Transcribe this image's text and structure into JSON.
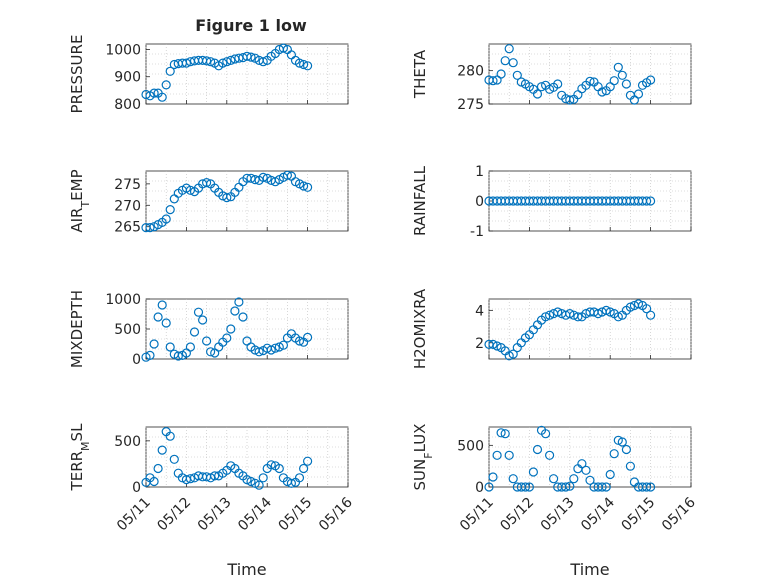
{
  "figure": {
    "title": "Figure 1 low",
    "marker_color": "#0072bd"
  },
  "chart_data": [
    {
      "type": "scatter",
      "ylabel": "PRESSURE",
      "xlim": [
        "05/11",
        "05/16"
      ],
      "ylim": [
        800,
        1020
      ],
      "yticks": [
        "800",
        "900",
        "1000"
      ],
      "xtick_labels": [],
      "grid": true,
      "x_days": [
        0.0,
        0.1,
        0.2,
        0.3,
        0.4,
        0.5,
        0.6,
        0.7,
        0.8,
        0.9,
        1.0,
        1.1,
        1.2,
        1.3,
        1.4,
        1.5,
        1.6,
        1.7,
        1.8,
        1.9,
        2.0,
        2.1,
        2.2,
        2.3,
        2.4,
        2.5,
        2.6,
        2.7,
        2.8,
        2.9,
        3.0,
        3.1,
        3.2,
        3.3,
        3.4,
        3.5,
        3.6,
        3.7,
        3.8,
        3.9,
        4.0
      ],
      "y": [
        835,
        830,
        840,
        840,
        825,
        870,
        920,
        945,
        948,
        950,
        950,
        955,
        958,
        960,
        960,
        958,
        955,
        950,
        940,
        950,
        955,
        960,
        965,
        968,
        970,
        975,
        972,
        968,
        960,
        955,
        960,
        975,
        985,
        1000,
        1005,
        1000,
        980,
        960,
        950,
        945,
        940
      ]
    },
    {
      "type": "scatter",
      "ylabel": "THETA",
      "xlim": [
        "05/11",
        "05/16"
      ],
      "ylim": [
        275,
        284
      ],
      "yticks": [
        "275",
        "280"
      ],
      "xtick_labels": [],
      "grid": true,
      "x_days": [
        0.0,
        0.1,
        0.2,
        0.3,
        0.4,
        0.5,
        0.6,
        0.7,
        0.8,
        0.9,
        1.0,
        1.1,
        1.2,
        1.3,
        1.4,
        1.5,
        1.6,
        1.7,
        1.8,
        1.9,
        2.0,
        2.1,
        2.2,
        2.3,
        2.4,
        2.5,
        2.6,
        2.7,
        2.8,
        2.9,
        3.0,
        3.1,
        3.2,
        3.3,
        3.4,
        3.5,
        3.6,
        3.7,
        3.8,
        3.9,
        4.0
      ],
      "y": [
        278.6,
        278.5,
        278.6,
        279.5,
        281.5,
        283.3,
        281.2,
        279.3,
        278.3,
        278.0,
        277.6,
        277.2,
        276.5,
        277.6,
        277.8,
        277.2,
        277.5,
        278.0,
        276.3,
        275.8,
        275.6,
        275.7,
        276.4,
        277.3,
        277.8,
        278.4,
        278.3,
        277.6,
        276.8,
        277.0,
        277.6,
        278.5,
        280.5,
        279.3,
        278.0,
        276.3,
        275.6,
        276.5,
        277.8,
        278.2,
        278.6
      ]
    },
    {
      "type": "scatter",
      "ylabel": "AIR_TEMP",
      "xlim": [
        "05/11",
        "05/16"
      ],
      "ylim": [
        264,
        278
      ],
      "yticks": [
        "265",
        "270",
        "275"
      ],
      "xtick_labels": [],
      "grid": true,
      "x_days": [
        0.0,
        0.1,
        0.2,
        0.3,
        0.4,
        0.5,
        0.6,
        0.7,
        0.8,
        0.9,
        1.0,
        1.1,
        1.2,
        1.3,
        1.4,
        1.5,
        1.6,
        1.7,
        1.8,
        1.9,
        2.0,
        2.1,
        2.2,
        2.3,
        2.4,
        2.5,
        2.6,
        2.7,
        2.8,
        2.9,
        3.0,
        3.1,
        3.2,
        3.3,
        3.4,
        3.5,
        3.6,
        3.7,
        3.8,
        3.9,
        4.0
      ],
      "y": [
        264.8,
        264.8,
        265.0,
        265.5,
        266.0,
        266.8,
        269.0,
        271.5,
        272.8,
        273.5,
        274.0,
        273.5,
        273.2,
        274.0,
        275.0,
        275.3,
        275.0,
        274.0,
        273.0,
        272.2,
        271.8,
        272.0,
        273.0,
        274.2,
        275.5,
        276.3,
        276.3,
        276.0,
        275.8,
        276.5,
        276.3,
        275.8,
        275.5,
        276.0,
        276.5,
        277.0,
        276.8,
        275.5,
        275.0,
        274.5,
        274.2
      ]
    },
    {
      "type": "scatter",
      "ylabel": "RAINFALL",
      "xlim": [
        "05/11",
        "05/16"
      ],
      "ylim": [
        -1,
        1
      ],
      "yticks": [
        "-1",
        "0",
        "1"
      ],
      "xtick_labels": [],
      "grid": true,
      "x_days": [
        0.0,
        0.1,
        0.2,
        0.3,
        0.4,
        0.5,
        0.6,
        0.7,
        0.8,
        0.9,
        1.0,
        1.1,
        1.2,
        1.3,
        1.4,
        1.5,
        1.6,
        1.7,
        1.8,
        1.9,
        2.0,
        2.1,
        2.2,
        2.3,
        2.4,
        2.5,
        2.6,
        2.7,
        2.8,
        2.9,
        3.0,
        3.1,
        3.2,
        3.3,
        3.4,
        3.5,
        3.6,
        3.7,
        3.8,
        3.9,
        4.0
      ],
      "y": [
        0,
        0,
        0,
        0,
        0,
        0,
        0,
        0,
        0,
        0,
        0,
        0,
        0,
        0,
        0,
        0,
        0,
        0,
        0,
        0,
        0,
        0,
        0,
        0,
        0,
        0,
        0,
        0,
        0,
        0,
        0,
        0,
        0,
        0,
        0,
        0,
        0,
        0,
        0,
        0,
        0
      ]
    },
    {
      "type": "scatter",
      "ylabel": "MIXDEPTH",
      "xlim": [
        "05/11",
        "05/16"
      ],
      "ylim": [
        0,
        1000
      ],
      "yticks": [
        "0",
        "500",
        "1000"
      ],
      "xtick_labels": [],
      "grid": true,
      "x_days": [
        0.0,
        0.1,
        0.2,
        0.3,
        0.4,
        0.5,
        0.6,
        0.7,
        0.8,
        0.9,
        1.0,
        1.1,
        1.2,
        1.3,
        1.4,
        1.5,
        1.6,
        1.7,
        1.8,
        1.9,
        2.0,
        2.1,
        2.2,
        2.3,
        2.4,
        2.5,
        2.6,
        2.7,
        2.8,
        2.9,
        3.0,
        3.1,
        3.2,
        3.3,
        3.4,
        3.5,
        3.6,
        3.7,
        3.8,
        3.9,
        4.0
      ],
      "y": [
        30,
        60,
        250,
        700,
        900,
        600,
        200,
        80,
        50,
        60,
        100,
        200,
        450,
        780,
        650,
        300,
        120,
        100,
        200,
        280,
        350,
        500,
        800,
        950,
        700,
        300,
        200,
        150,
        120,
        140,
        180,
        150,
        180,
        200,
        230,
        350,
        420,
        350,
        300,
        280,
        360
      ]
    },
    {
      "type": "scatter",
      "ylabel": "H2OMIXRA",
      "xlim": [
        "05/11",
        "05/16"
      ],
      "ylim": [
        1,
        4.7
      ],
      "yticks": [
        "2",
        "4"
      ],
      "xtick_labels": [],
      "grid": true,
      "x_days": [
        0.0,
        0.1,
        0.2,
        0.3,
        0.4,
        0.5,
        0.6,
        0.7,
        0.8,
        0.9,
        1.0,
        1.1,
        1.2,
        1.3,
        1.4,
        1.5,
        1.6,
        1.7,
        1.8,
        1.9,
        2.0,
        2.1,
        2.2,
        2.3,
        2.4,
        2.5,
        2.6,
        2.7,
        2.8,
        2.9,
        3.0,
        3.1,
        3.2,
        3.3,
        3.4,
        3.5,
        3.6,
        3.7,
        3.8,
        3.9,
        4.0
      ],
      "y": [
        1.9,
        1.9,
        1.8,
        1.7,
        1.5,
        1.2,
        1.3,
        1.7,
        2.0,
        2.3,
        2.5,
        2.8,
        3.1,
        3.4,
        3.6,
        3.7,
        3.8,
        3.9,
        3.8,
        3.7,
        3.8,
        3.7,
        3.6,
        3.6,
        3.8,
        3.9,
        3.9,
        3.8,
        3.9,
        4.0,
        3.9,
        3.8,
        3.6,
        3.7,
        4.0,
        4.2,
        4.3,
        4.4,
        4.3,
        4.1,
        3.7
      ]
    },
    {
      "type": "scatter",
      "ylabel": "TERR_MSL",
      "xlim": [
        "05/11",
        "05/16"
      ],
      "ylim": [
        0,
        650
      ],
      "yticks": [
        "0",
        "500"
      ],
      "xtick_labels": [
        "05/11",
        "05/12",
        "05/13",
        "05/14",
        "05/15",
        "05/16"
      ],
      "xlabel": "Time",
      "grid": true,
      "x_days": [
        0.0,
        0.1,
        0.2,
        0.3,
        0.4,
        0.5,
        0.6,
        0.7,
        0.8,
        0.9,
        1.0,
        1.1,
        1.2,
        1.3,
        1.4,
        1.5,
        1.6,
        1.7,
        1.8,
        1.9,
        2.0,
        2.1,
        2.2,
        2.3,
        2.4,
        2.5,
        2.6,
        2.7,
        2.8,
        2.9,
        3.0,
        3.1,
        3.2,
        3.3,
        3.4,
        3.5,
        3.6,
        3.7,
        3.8,
        3.9,
        4.0
      ],
      "y": [
        50,
        100,
        60,
        200,
        400,
        600,
        550,
        300,
        150,
        100,
        80,
        90,
        100,
        120,
        110,
        110,
        100,
        120,
        120,
        150,
        180,
        230,
        200,
        150,
        120,
        80,
        60,
        40,
        20,
        100,
        200,
        240,
        230,
        200,
        100,
        60,
        40,
        50,
        100,
        200,
        280
      ]
    },
    {
      "type": "scatter",
      "ylabel": "SUN_FLUX",
      "xlim": [
        "05/11",
        "05/16"
      ],
      "ylim": [
        0,
        720
      ],
      "yticks": [
        "0",
        "500"
      ],
      "xtick_labels": [
        "05/11",
        "05/12",
        "05/13",
        "05/14",
        "05/15",
        "05/16"
      ],
      "xlabel": "Time",
      "grid": true,
      "x_days": [
        0.0,
        0.1,
        0.2,
        0.3,
        0.4,
        0.5,
        0.6,
        0.7,
        0.8,
        0.9,
        1.0,
        1.1,
        1.2,
        1.3,
        1.4,
        1.5,
        1.6,
        1.7,
        1.8,
        1.9,
        2.0,
        2.1,
        2.2,
        2.3,
        2.4,
        2.5,
        2.6,
        2.7,
        2.8,
        2.9,
        3.0,
        3.1,
        3.2,
        3.3,
        3.4,
        3.5,
        3.6,
        3.7,
        3.8,
        3.9,
        4.0
      ],
      "y": [
        0,
        120,
        380,
        650,
        640,
        380,
        100,
        0,
        0,
        0,
        0,
        180,
        450,
        680,
        640,
        380,
        100,
        0,
        0,
        0,
        10,
        100,
        220,
        280,
        200,
        80,
        0,
        0,
        0,
        0,
        150,
        400,
        560,
        540,
        450,
        250,
        60,
        0,
        0,
        0,
        0
      ]
    }
  ]
}
